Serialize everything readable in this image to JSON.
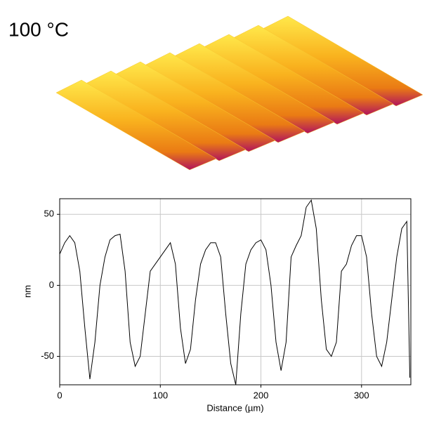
{
  "chart_data": {
    "type": "line",
    "title": "100 °C",
    "x_label": "Distance (µm)",
    "y_label": "nm",
    "x": [
      0,
      5,
      10,
      15,
      20,
      25,
      30,
      35,
      40,
      45,
      50,
      55,
      60,
      65,
      70,
      75,
      80,
      85,
      90,
      95,
      100,
      105,
      110,
      115,
      120,
      125,
      130,
      135,
      140,
      145,
      150,
      155,
      160,
      165,
      170,
      175,
      180,
      185,
      190,
      195,
      200,
      205,
      210,
      215,
      220,
      225,
      230,
      235,
      240,
      245,
      250,
      255,
      260,
      265,
      270,
      275,
      280,
      285,
      290,
      295,
      300,
      305,
      310,
      315,
      320,
      325,
      330,
      335,
      340,
      345,
      348
    ],
    "values": [
      22,
      30,
      35,
      30,
      10,
      -30,
      -66,
      -40,
      0,
      20,
      32,
      35,
      36,
      10,
      -40,
      -57,
      -50,
      -20,
      10,
      15,
      20,
      25,
      30,
      15,
      -30,
      -55,
      -45,
      -10,
      15,
      25,
      30,
      30,
      20,
      -20,
      -55,
      -70,
      -20,
      15,
      25,
      30,
      32,
      25,
      0,
      -40,
      -60,
      -40,
      20,
      28,
      35,
      55,
      60,
      40,
      -10,
      -45,
      -50,
      -40,
      10,
      15,
      28,
      35,
      35,
      20,
      -20,
      -50,
      -57,
      -40,
      -10,
      20,
      40,
      45,
      -65
    ],
    "color": "#000000",
    "xlim": [
      0,
      349
    ],
    "xticks": [
      0,
      100,
      200,
      300
    ],
    "ylim": [
      -70,
      61
    ],
    "yticks": [
      -50,
      0,
      50
    ],
    "grid": true
  }
}
